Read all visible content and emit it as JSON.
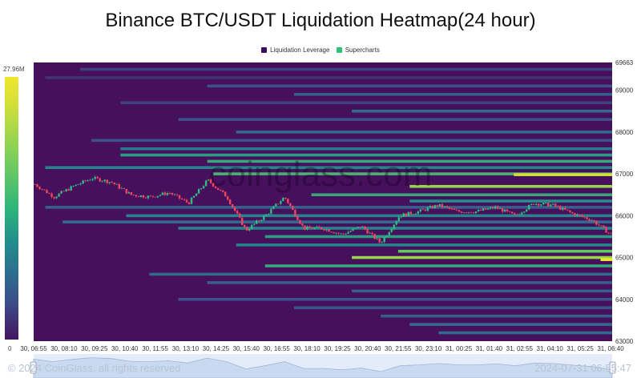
{
  "title": "Binance BTC/USDT Liquidation Heatmap(24 hour)",
  "legend": [
    {
      "label": "Liquidation Leverage",
      "color": "#3b0f5c"
    },
    {
      "label": "Supercharts",
      "color": "#2fc07a"
    }
  ],
  "colorbar": {
    "max_label": "27.96M",
    "min_label": "0"
  },
  "watermark": "coinglass.com",
  "footer": {
    "copyright": "© 2024 CoinGlass, all rights reserved",
    "timestamp": "2024-07-31 06:55:47"
  },
  "chart_data": {
    "type": "heatmap",
    "title": "Binance BTC/USDT Liquidation Heatmap(24 hour)",
    "xlabel": "",
    "ylabel": "",
    "x_ticks": [
      "30, 06:55",
      "30, 08:10",
      "30, 09:25",
      "30, 10:40",
      "30, 11:55",
      "30, 13:10",
      "30, 14:25",
      "30, 15:40",
      "30, 16:55",
      "30, 18:10",
      "30, 19:25",
      "30, 20:40",
      "30, 21:55",
      "30, 23:10",
      "31, 00:25",
      "31, 01:40",
      "31, 02:55",
      "31, 04:10",
      "31, 05:25",
      "31, 06:40"
    ],
    "y_ticks": [
      63000,
      64000,
      65000,
      66000,
      67000,
      68000,
      69000,
      69663
    ],
    "ylim": [
      63000,
      69663
    ],
    "colorbar_range": [
      0,
      27.96
    ],
    "colorbar_unit": "M",
    "price_path": [
      {
        "t": 0,
        "close": 66750
      },
      {
        "t": 1,
        "close": 66450
      },
      {
        "t": 2,
        "close": 66700
      },
      {
        "t": 3,
        "close": 66900
      },
      {
        "t": 4,
        "close": 66800
      },
      {
        "t": 5,
        "close": 66500
      },
      {
        "t": 6,
        "close": 66450
      },
      {
        "t": 7,
        "close": 66550
      },
      {
        "t": 8,
        "close": 66300
      },
      {
        "t": 9,
        "close": 66850
      },
      {
        "t": 10,
        "close": 66450
      },
      {
        "t": 11,
        "close": 65650
      },
      {
        "t": 12,
        "close": 66000
      },
      {
        "t": 13,
        "close": 66450
      },
      {
        "t": 14,
        "close": 65700
      },
      {
        "t": 15,
        "close": 65700
      },
      {
        "t": 16,
        "close": 65550
      },
      {
        "t": 17,
        "close": 65750
      },
      {
        "t": 18,
        "close": 65350
      },
      {
        "t": 19,
        "close": 66000
      },
      {
        "t": 20,
        "close": 66100
      },
      {
        "t": 21,
        "close": 66250
      },
      {
        "t": 22,
        "close": 66100
      },
      {
        "t": 23,
        "close": 66100
      },
      {
        "t": 24,
        "close": 66200
      },
      {
        "t": 25,
        "close": 66000
      },
      {
        "t": 26,
        "close": 66300
      },
      {
        "t": 27,
        "close": 66250
      },
      {
        "t": 28,
        "close": 66050
      },
      {
        "t": 29,
        "close": 65900
      },
      {
        "t": 30,
        "close": 65550
      }
    ],
    "liquidation_bands": [
      {
        "price": 69500,
        "from": 0.08,
        "intensity": 0.2
      },
      {
        "price": 69300,
        "from": 0.02,
        "intensity": 0.15
      },
      {
        "price": 69100,
        "from": 0.3,
        "intensity": 0.25
      },
      {
        "price": 68900,
        "from": 0.45,
        "intensity": 0.3
      },
      {
        "price": 68700,
        "from": 0.15,
        "intensity": 0.2
      },
      {
        "price": 68500,
        "from": 0.55,
        "intensity": 0.35
      },
      {
        "price": 68300,
        "from": 0.25,
        "intensity": 0.25
      },
      {
        "price": 68000,
        "from": 0.35,
        "intensity": 0.35
      },
      {
        "price": 67800,
        "from": 0.1,
        "intensity": 0.25
      },
      {
        "price": 67600,
        "from": 0.15,
        "intensity": 0.4
      },
      {
        "price": 67450,
        "from": 0.15,
        "intensity": 0.55
      },
      {
        "price": 67300,
        "from": 0.3,
        "intensity": 0.6
      },
      {
        "price": 67150,
        "from": 0.02,
        "intensity": 0.45
      },
      {
        "price": 67000,
        "from": 0.31,
        "intensity": 0.65
      },
      {
        "price": 66980,
        "from": 0.83,
        "intensity": 0.95
      },
      {
        "price": 66700,
        "from": 0.65,
        "intensity": 0.85
      },
      {
        "price": 66500,
        "from": 0.48,
        "intensity": 0.6
      },
      {
        "price": 66350,
        "from": 0.65,
        "intensity": 0.5
      },
      {
        "price": 66200,
        "from": 0.02,
        "intensity": 0.3
      },
      {
        "price": 66000,
        "from": 0.16,
        "intensity": 0.45
      },
      {
        "price": 65850,
        "from": 0.05,
        "intensity": 0.35
      },
      {
        "price": 65700,
        "from": 0.25,
        "intensity": 0.45
      },
      {
        "price": 65500,
        "from": 0.4,
        "intensity": 0.55
      },
      {
        "price": 65300,
        "from": 0.35,
        "intensity": 0.45
      },
      {
        "price": 65150,
        "from": 0.63,
        "intensity": 0.75
      },
      {
        "price": 65000,
        "from": 0.55,
        "intensity": 0.85
      },
      {
        "price": 64950,
        "from": 0.98,
        "intensity": 1.0
      },
      {
        "price": 64800,
        "from": 0.4,
        "intensity": 0.6
      },
      {
        "price": 64600,
        "from": 0.2,
        "intensity": 0.35
      },
      {
        "price": 64400,
        "from": 0.3,
        "intensity": 0.3
      },
      {
        "price": 64200,
        "from": 0.55,
        "intensity": 0.3
      },
      {
        "price": 64000,
        "from": 0.25,
        "intensity": 0.25
      },
      {
        "price": 63800,
        "from": 0.45,
        "intensity": 0.25
      },
      {
        "price": 63600,
        "from": 0.6,
        "intensity": 0.3
      },
      {
        "price": 63400,
        "from": 0.65,
        "intensity": 0.35
      },
      {
        "price": 63200,
        "from": 0.7,
        "intensity": 0.35
      }
    ]
  }
}
